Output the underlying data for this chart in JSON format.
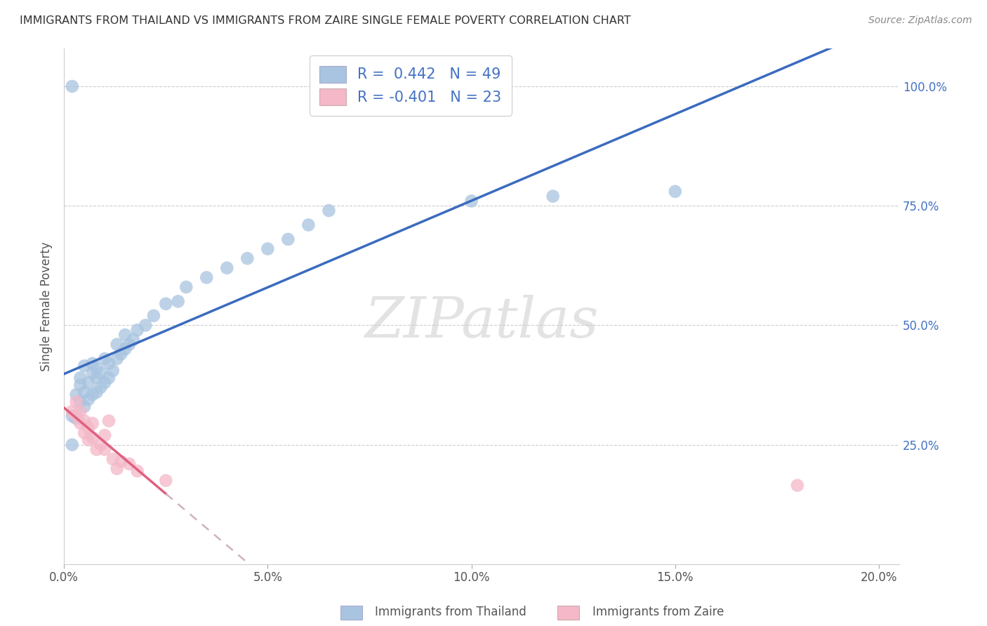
{
  "title": "IMMIGRANTS FROM THAILAND VS IMMIGRANTS FROM ZAIRE SINGLE FEMALE POVERTY CORRELATION CHART",
  "source": "Source: ZipAtlas.com",
  "ylabel": "Single Female Poverty",
  "watermark": "ZIPatlas",
  "legend_thailand": {
    "R": 0.442,
    "N": 49,
    "label": "Immigrants from Thailand"
  },
  "legend_zaire": {
    "R": -0.401,
    "N": 23,
    "label": "Immigrants from Zaire"
  },
  "thailand_color": "#a8c4e0",
  "zaire_color": "#f4b8c8",
  "trend_thailand_color": "#3a6bbf",
  "trend_zaire_color": "#e06080",
  "trend_zaire_ext_color": "#d0b0c0",
  "thailand_x": [
    0.002,
    0.003,
    0.003,
    0.004,
    0.004,
    0.004,
    0.005,
    0.005,
    0.005,
    0.006,
    0.006,
    0.007,
    0.007,
    0.007,
    0.008,
    0.008,
    0.008,
    0.009,
    0.009,
    0.01,
    0.01,
    0.011,
    0.011,
    0.012,
    0.013,
    0.013,
    0.014,
    0.015,
    0.015,
    0.016,
    0.017,
    0.018,
    0.02,
    0.022,
    0.025,
    0.028,
    0.03,
    0.035,
    0.04,
    0.045,
    0.05,
    0.055,
    0.06,
    0.065,
    0.1,
    0.12,
    0.15,
    0.002,
    0.002
  ],
  "thailand_y": [
    0.31,
    0.305,
    0.355,
    0.34,
    0.375,
    0.39,
    0.33,
    0.36,
    0.415,
    0.345,
    0.38,
    0.355,
    0.4,
    0.42,
    0.36,
    0.39,
    0.41,
    0.37,
    0.4,
    0.38,
    0.43,
    0.39,
    0.42,
    0.405,
    0.43,
    0.46,
    0.44,
    0.45,
    0.48,
    0.46,
    0.47,
    0.49,
    0.5,
    0.52,
    0.545,
    0.55,
    0.58,
    0.6,
    0.62,
    0.64,
    0.66,
    0.68,
    0.71,
    0.74,
    0.76,
    0.77,
    0.78,
    1.0,
    0.25
  ],
  "zaire_x": [
    0.002,
    0.003,
    0.003,
    0.004,
    0.004,
    0.005,
    0.005,
    0.006,
    0.006,
    0.007,
    0.007,
    0.008,
    0.009,
    0.01,
    0.01,
    0.011,
    0.012,
    0.013,
    0.014,
    0.016,
    0.018,
    0.025,
    0.18
  ],
  "zaire_y": [
    0.32,
    0.34,
    0.31,
    0.32,
    0.295,
    0.3,
    0.275,
    0.285,
    0.26,
    0.265,
    0.295,
    0.24,
    0.25,
    0.24,
    0.27,
    0.3,
    0.22,
    0.2,
    0.215,
    0.21,
    0.195,
    0.175,
    0.165
  ],
  "xlim": [
    0.0,
    0.205
  ],
  "ylim": [
    0.0,
    1.08
  ],
  "xticks": [
    0.0,
    0.05,
    0.1,
    0.15,
    0.2
  ],
  "yticks_right": [
    0.25,
    0.5,
    0.75,
    1.0
  ],
  "ytick_labels_right": [
    "25.0%",
    "50.0%",
    "75.0%",
    "100.0%"
  ],
  "xtick_labels": [
    "0.0%",
    "5.0%",
    "10.0%",
    "15.0%",
    "20.0%"
  ]
}
